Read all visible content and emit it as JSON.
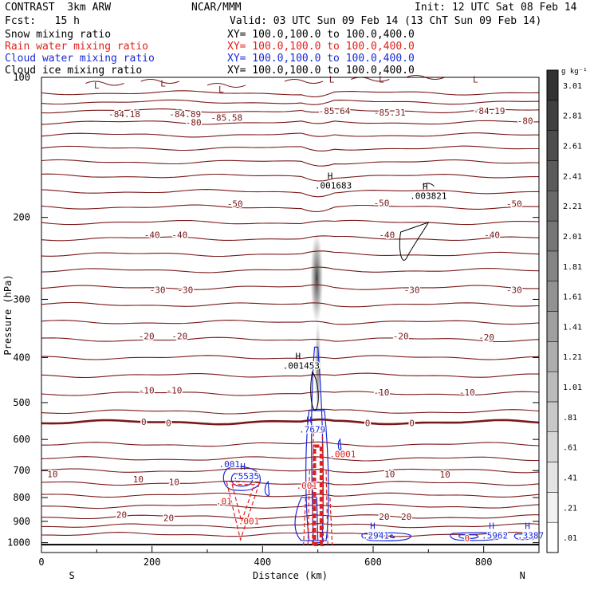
{
  "header": {
    "title": "CONTRAST  3km ARW",
    "center": "NCAR/MMM",
    "init": "Init: 12 UTC Sat 08 Feb 14",
    "fcst": "Fcst:   15 h",
    "valid": "Valid: 03 UTC Sun 09 Feb 14 (13 ChT Sun 09 Feb 14)"
  },
  "fields": [
    {
      "name": "Snow mixing ratio",
      "xy": "XY= 100.0,100.0 to 100.0,400.0",
      "color": "#000000"
    },
    {
      "name": "Rain water mixing ratio",
      "xy": "XY= 100.0,100.0 to 100.0,400.0",
      "color": "#e0201c"
    },
    {
      "name": "Cloud water mixing ratio",
      "xy": "XY= 100.0,100.0 to 100.0,400.0",
      "color": "#1a2ad8"
    },
    {
      "name": "Cloud ice mixing ratio",
      "xy": "XY= 100.0,100.0 to 100.0,400.0",
      "color": "#000000"
    }
  ],
  "chart_data": {
    "type": "contour",
    "xlabel": "Distance (km)",
    "ylabel": "Pressure (hPa)",
    "xlim": [
      0,
      900
    ],
    "ylim": [
      100,
      1050
    ],
    "y_scale": "log",
    "y_reversed": true,
    "x_ticks": [
      0,
      200,
      400,
      600,
      800
    ],
    "y_ticks": [
      100,
      200,
      300,
      400,
      500,
      600,
      700,
      800,
      900,
      1000
    ],
    "left_end": "S",
    "right_end": "N",
    "temperature_contour_color": "#7a1818",
    "isotherm_labels": [
      {
        "x": 150,
        "p": 120,
        "text": "-84.18"
      },
      {
        "x": 260,
        "p": 120,
        "text": "-84.89"
      },
      {
        "x": 275,
        "p": 125,
        "text": "-80"
      },
      {
        "x": 335,
        "p": 122,
        "text": "-85.58"
      },
      {
        "x": 530,
        "p": 118,
        "text": "-85.64"
      },
      {
        "x": 630,
        "p": 119,
        "text": "-85.31"
      },
      {
        "x": 810,
        "p": 118,
        "text": "-84.19"
      },
      {
        "x": 875,
        "p": 124,
        "text": "-80"
      },
      {
        "x": 350,
        "p": 187,
        "text": "-50"
      },
      {
        "x": 615,
        "p": 186,
        "text": "-50"
      },
      {
        "x": 855,
        "p": 187,
        "text": "-50"
      },
      {
        "x": 200,
        "p": 218,
        "text": "-40"
      },
      {
        "x": 250,
        "p": 218,
        "text": "-40"
      },
      {
        "x": 625,
        "p": 218,
        "text": "-40"
      },
      {
        "x": 815,
        "p": 218,
        "text": "-40"
      },
      {
        "x": 210,
        "p": 286,
        "text": "-30"
      },
      {
        "x": 260,
        "p": 286,
        "text": "-30"
      },
      {
        "x": 670,
        "p": 286,
        "text": "-30"
      },
      {
        "x": 855,
        "p": 286,
        "text": "-30"
      },
      {
        "x": 190,
        "p": 360,
        "text": "-20"
      },
      {
        "x": 250,
        "p": 360,
        "text": "-20"
      },
      {
        "x": 650,
        "p": 360,
        "text": "-20"
      },
      {
        "x": 805,
        "p": 362,
        "text": "-20"
      },
      {
        "x": 190,
        "p": 470,
        "text": "-10"
      },
      {
        "x": 240,
        "p": 470,
        "text": "-10"
      },
      {
        "x": 615,
        "p": 475,
        "text": "-10"
      },
      {
        "x": 770,
        "p": 475,
        "text": "-10"
      },
      {
        "x": 185,
        "p": 550,
        "text": "0"
      },
      {
        "x": 230,
        "p": 553,
        "text": "0"
      },
      {
        "x": 590,
        "p": 553,
        "text": "0"
      },
      {
        "x": 670,
        "p": 553,
        "text": "0"
      },
      {
        "x": 20,
        "p": 712,
        "text": "10"
      },
      {
        "x": 175,
        "p": 730,
        "text": "10"
      },
      {
        "x": 240,
        "p": 740,
        "text": "10"
      },
      {
        "x": 630,
        "p": 712,
        "text": "10"
      },
      {
        "x": 730,
        "p": 714,
        "text": "10"
      },
      {
        "x": 145,
        "p": 870,
        "text": "20"
      },
      {
        "x": 230,
        "p": 885,
        "text": "20"
      },
      {
        "x": 620,
        "p": 880,
        "text": "20"
      },
      {
        "x": 660,
        "p": 880,
        "text": "20"
      }
    ],
    "min_labels": [
      {
        "x": 100,
        "p": 104,
        "text": "L"
      },
      {
        "x": 220,
        "p": 103,
        "text": "L"
      },
      {
        "x": 325,
        "p": 106,
        "text": "L"
      },
      {
        "x": 525,
        "p": 101,
        "text": "L"
      },
      {
        "x": 615,
        "p": 101,
        "text": "L"
      },
      {
        "x": 785,
        "p": 101,
        "text": "L"
      }
    ],
    "extreme_labels": [
      {
        "x": 528,
        "p": 172,
        "h": "H",
        "value": ".001683",
        "color": "#000000"
      },
      {
        "x": 700,
        "p": 181,
        "h": "H",
        "value": ".003821",
        "color": "#000000"
      },
      {
        "x": 470,
        "p": 420,
        "h": "H",
        "value": ".001453",
        "color": "#000000"
      },
      {
        "x": 490,
        "p": 575,
        "h": "H",
        "value": ".7679",
        "color": "#1a2ad8"
      },
      {
        "x": 545,
        "p": 650,
        "h": "",
        "value": ".0001",
        "color": "#e0201c"
      },
      {
        "x": 370,
        "p": 725,
        "h": "H",
        "value": ".5535",
        "color": "#1a2ad8"
      },
      {
        "x": 340,
        "p": 683,
        "h": "",
        "value": ".001",
        "color": "#1a2ad8"
      },
      {
        "x": 480,
        "p": 760,
        "h": "",
        "value": ".001",
        "color": "#e0201c"
      },
      {
        "x": 330,
        "p": 820,
        "h": "",
        "value": ".01",
        "color": "#e0201c"
      },
      {
        "x": 375,
        "p": 905,
        "h": "",
        "value": ".001",
        "color": "#e0201c"
      },
      {
        "x": 605,
        "p": 972,
        "h": "H",
        "value": ".2941",
        "color": "#1a2ad8"
      },
      {
        "x": 820,
        "p": 972,
        "h": "H",
        "value": ".5962",
        "color": "#1a2ad8"
      },
      {
        "x": 885,
        "p": 972,
        "h": "H",
        "value": ".3387",
        "color": "#1a2ad8"
      },
      {
        "x": 770,
        "p": 985,
        "h": "",
        "value": "0",
        "color": "#e0201c"
      }
    ],
    "colorbar": {
      "unit": "g kg⁻¹",
      "levels": [
        ".01",
        ".21",
        ".41",
        ".61",
        ".81",
        "1.01",
        "1.21",
        "1.41",
        "1.61",
        "1.81",
        "2.01",
        "2.21",
        "2.41",
        "2.61",
        "2.81",
        "3.01"
      ]
    }
  }
}
